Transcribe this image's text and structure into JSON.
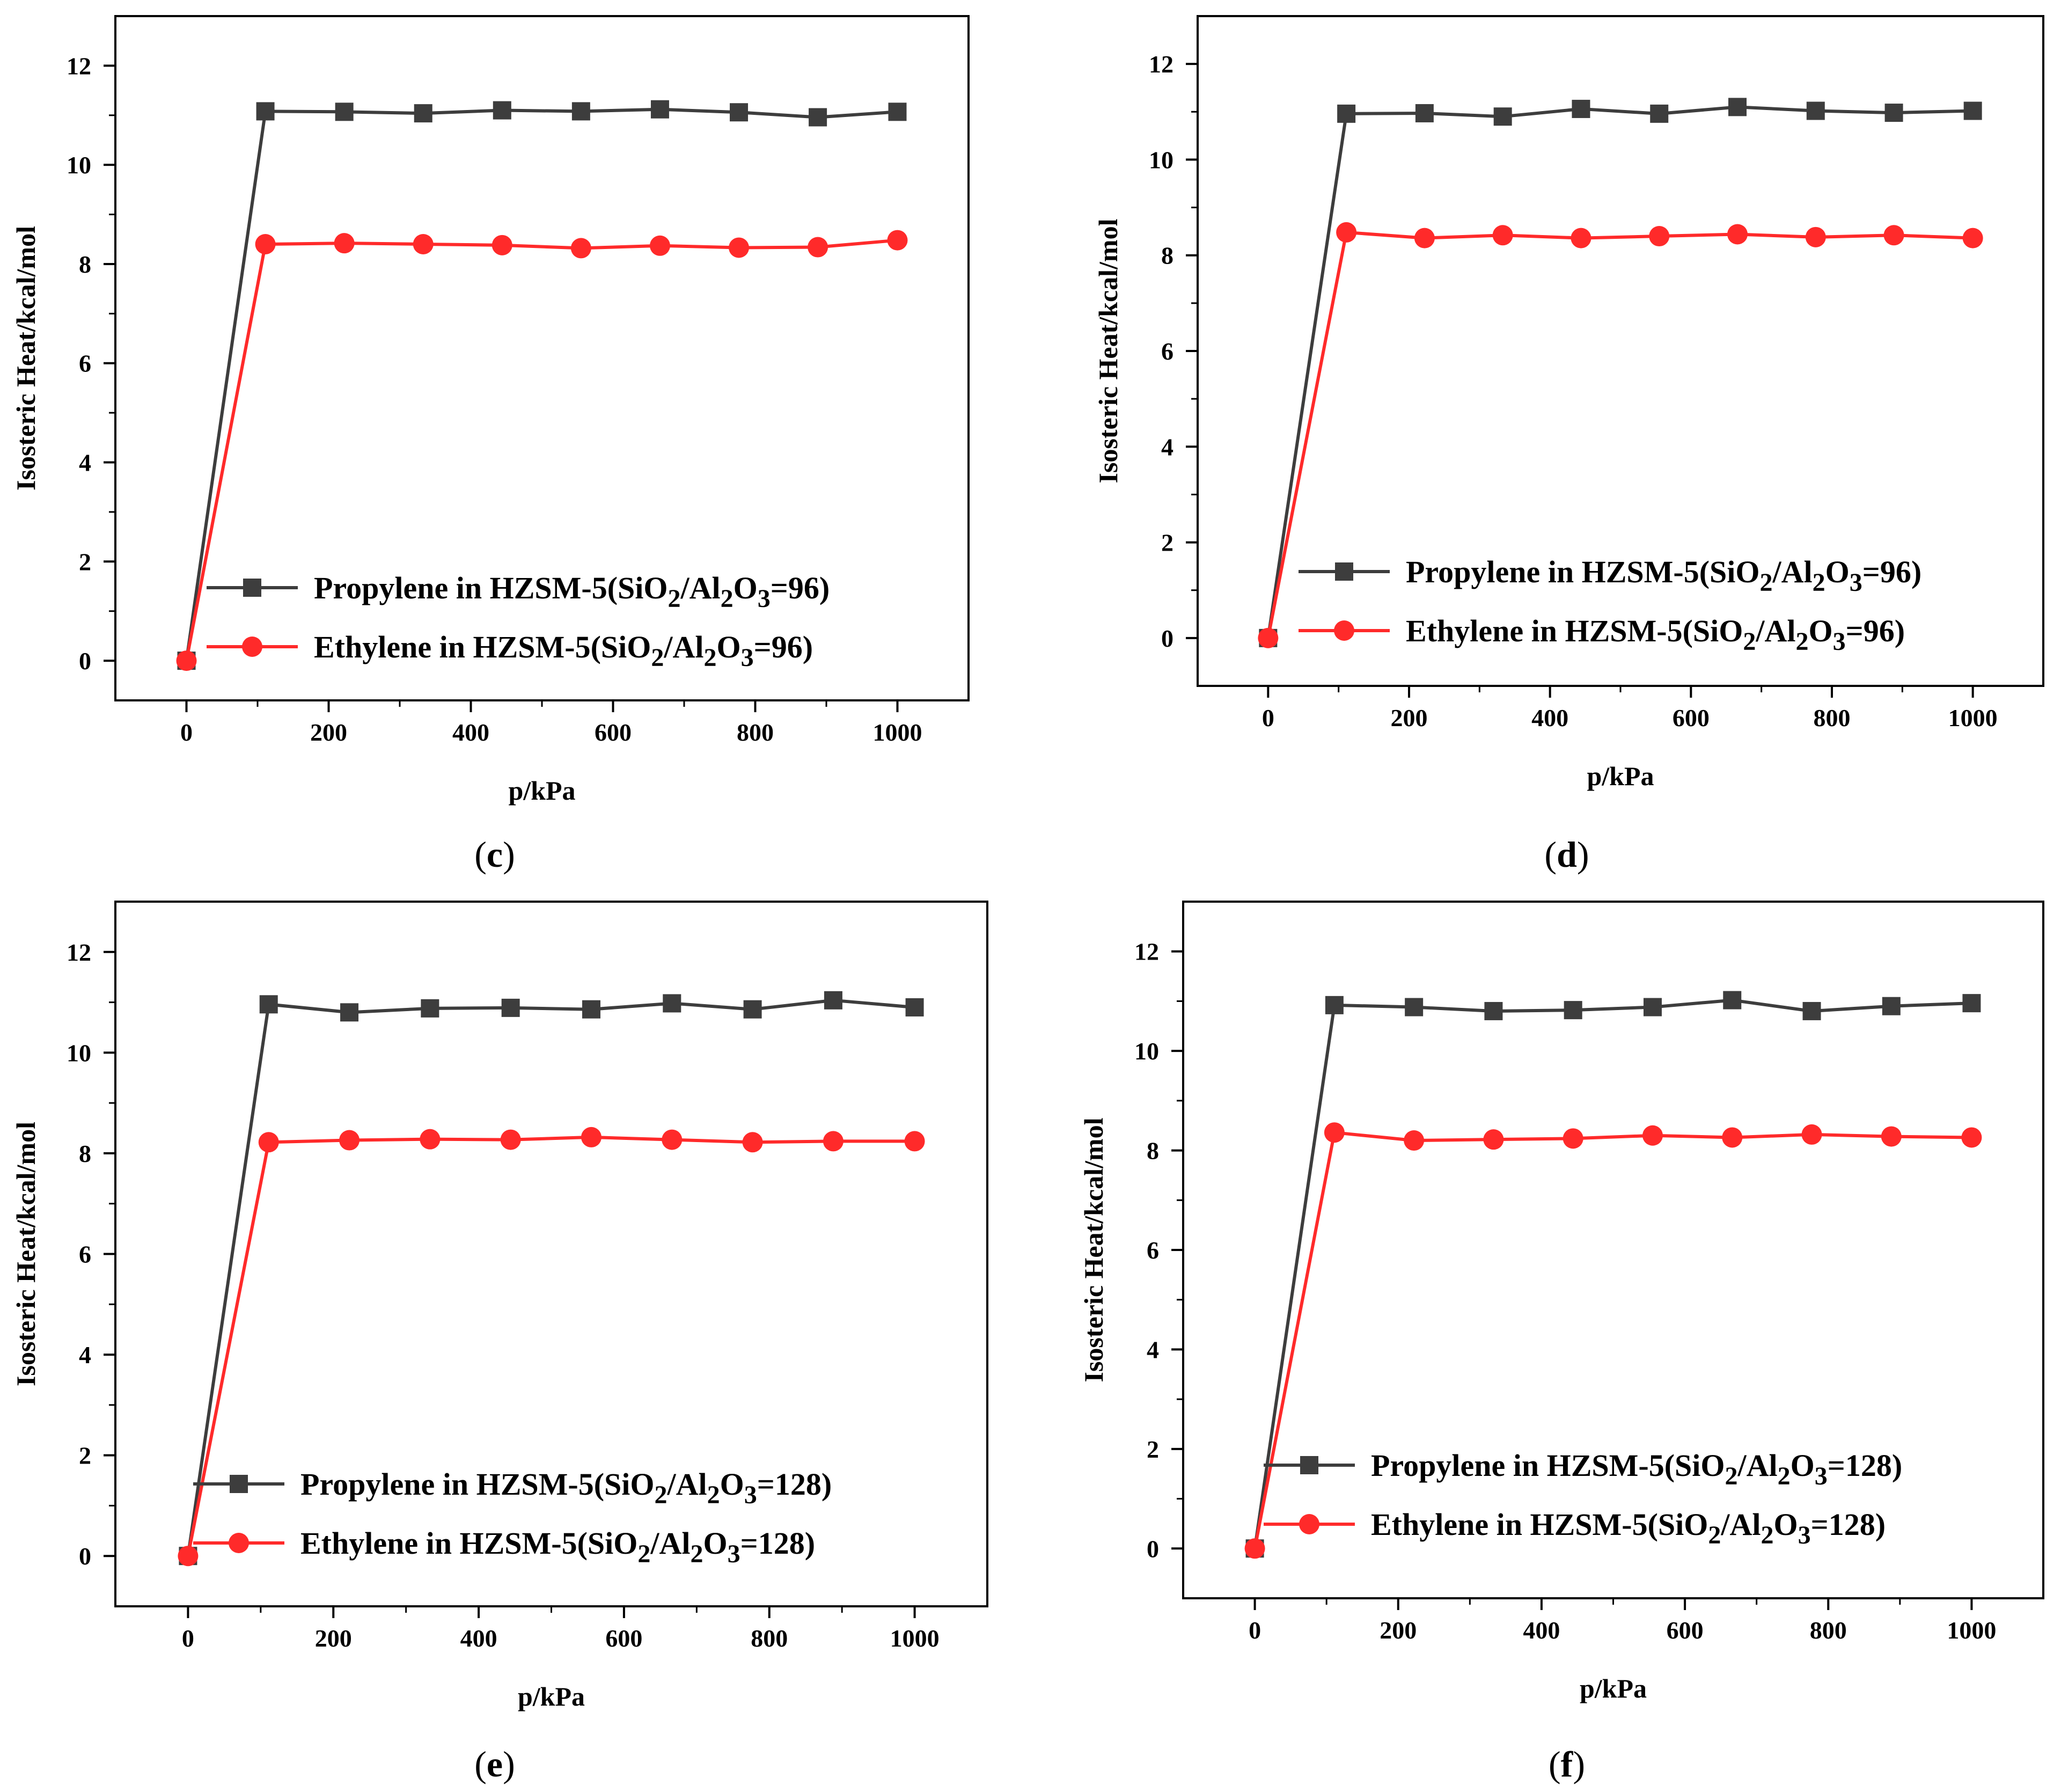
{
  "figure": {
    "colors": {
      "propylene": "#3d3d3d",
      "ethylene": "#ff2a2a",
      "axis": "#000000"
    }
  },
  "chart_data": [
    {
      "type": "line",
      "panel": "c",
      "caption": {
        "open": "(",
        "letter": "c",
        "close": ")"
      },
      "xlabel": "p/kPa",
      "ylabel": "Isosteric Heat/kcal/mol",
      "xlim": [
        -100,
        1100
      ],
      "ylim": [
        -0.8,
        13
      ],
      "xticks": [
        0,
        200,
        400,
        600,
        800,
        1000
      ],
      "yticks": [
        0,
        2,
        4,
        6,
        8,
        10,
        12
      ],
      "x": [
        0,
        111,
        222,
        333,
        444,
        555,
        666,
        777,
        888,
        1000
      ],
      "series": [
        {
          "name": "Propylene in HZSM-5(SiO2/Al2O3=96)",
          "legend": {
            "pre": "Propylene in HZSM-5(SiO",
            "s1": "2",
            "mid": "/Al",
            "s2": "2",
            "o": "O",
            "s3": "3",
            "post": "=96)"
          },
          "marker": "square",
          "values": [
            0,
            11.08,
            11.07,
            11.04,
            11.1,
            11.08,
            11.12,
            11.06,
            10.96,
            11.07
          ]
        },
        {
          "name": "Ethylene in HZSM-5(SiO2/Al2O3=96)",
          "legend": {
            "pre": "Ethylene in HZSM-5(SiO",
            "s1": "2",
            "mid": "/Al",
            "s2": "2",
            "o": "O",
            "s3": "3",
            "post": "=96)"
          },
          "marker": "circle",
          "values": [
            0,
            8.4,
            8.42,
            8.4,
            8.38,
            8.32,
            8.37,
            8.33,
            8.34,
            8.48
          ]
        }
      ]
    },
    {
      "type": "line",
      "panel": "d",
      "caption": {
        "open": "(",
        "letter": "d",
        "close": ")"
      },
      "xlabel": "p/kPa",
      "ylabel": "Isosteric Heat/kcal/mol",
      "xlim": [
        -100,
        1100
      ],
      "ylim": [
        -1,
        13
      ],
      "xticks": [
        0,
        200,
        400,
        600,
        800,
        1000
      ],
      "yticks": [
        0,
        2,
        4,
        6,
        8,
        10,
        12
      ],
      "x": [
        0,
        111,
        222,
        333,
        444,
        555,
        666,
        777,
        888,
        1000
      ],
      "series": [
        {
          "name": "Propylene in HZSM-5(SiO2/Al2O3=96)",
          "legend": {
            "pre": "Propylene in HZSM-5(SiO",
            "s1": "2",
            "mid": "/Al",
            "s2": "2",
            "o": "O",
            "s3": "3",
            "post": "=96)"
          },
          "marker": "square",
          "values": [
            0,
            10.96,
            10.97,
            10.9,
            11.06,
            10.96,
            11.1,
            11.02,
            10.98,
            11.02
          ]
        },
        {
          "name": "Ethylene in HZSM-5(SiO2/Al2O3=96)",
          "legend": {
            "pre": "Ethylene in HZSM-5(SiO",
            "s1": "2",
            "mid": "/Al",
            "s2": "2",
            "o": "O",
            "s3": "3",
            "post": "=96)"
          },
          "marker": "circle",
          "values": [
            0,
            8.48,
            8.36,
            8.42,
            8.36,
            8.4,
            8.44,
            8.38,
            8.42,
            8.36
          ]
        }
      ]
    },
    {
      "type": "line",
      "panel": "e",
      "caption": {
        "open": "(",
        "letter": "e",
        "close": ")"
      },
      "xlabel": "p/kPa",
      "ylabel": "Isosteric Heat/kcal/mol",
      "xlim": [
        -100,
        1100
      ],
      "ylim": [
        -1,
        13
      ],
      "xticks": [
        0,
        200,
        400,
        600,
        800,
        1000
      ],
      "yticks": [
        0,
        2,
        4,
        6,
        8,
        10,
        12
      ],
      "x": [
        0,
        111,
        222,
        333,
        444,
        555,
        666,
        777,
        888,
        1000
      ],
      "series": [
        {
          "name": "Propylene in HZSM-5(SiO2/Al2O3=128)",
          "legend": {
            "pre": "Propylene in HZSM-5(SiO",
            "s1": "2",
            "mid": "/Al",
            "s2": "2",
            "o": "O",
            "s3": "3",
            "post": "=128)"
          },
          "marker": "square",
          "values": [
            0,
            10.96,
            10.8,
            10.88,
            10.89,
            10.86,
            10.98,
            10.86,
            11.04,
            10.9
          ]
        },
        {
          "name": "Ethylene in HZSM-5(SiO2/Al2O3=128)",
          "legend": {
            "pre": "Ethylene in HZSM-5(SiO",
            "s1": "2",
            "mid": "/Al",
            "s2": "2",
            "o": "O",
            "s3": "3",
            "post": "=128)"
          },
          "marker": "circle",
          "values": [
            0,
            8.22,
            8.26,
            8.28,
            8.27,
            8.32,
            8.27,
            8.22,
            8.24,
            8.24
          ]
        }
      ]
    },
    {
      "type": "line",
      "panel": "f",
      "caption": {
        "open": "(",
        "letter": "f",
        "close": ")"
      },
      "xlabel": "p/kPa",
      "ylabel": "Isosteric Heat/kcal/mol",
      "xlim": [
        -100,
        1100
      ],
      "ylim": [
        -1,
        13
      ],
      "xticks": [
        0,
        200,
        400,
        600,
        800,
        1000
      ],
      "yticks": [
        0,
        2,
        4,
        6,
        8,
        10,
        12
      ],
      "x": [
        0,
        111,
        222,
        333,
        444,
        555,
        666,
        777,
        888,
        1000
      ],
      "series": [
        {
          "name": "Propylene in HZSM-5(SiO2/Al2O3=128)",
          "legend": {
            "pre": "Propylene in HZSM-5(SiO",
            "s1": "2",
            "mid": "/Al",
            "s2": "2",
            "o": "O",
            "s3": "3",
            "post": "=128)"
          },
          "marker": "square",
          "values": [
            0,
            10.92,
            10.88,
            10.8,
            10.82,
            10.88,
            11.02,
            10.8,
            10.9,
            10.96
          ]
        },
        {
          "name": "Ethylene in HZSM-5(SiO2/Al2O3=128)",
          "legend": {
            "pre": "Ethylene in HZSM-5(SiO",
            "s1": "2",
            "mid": "/Al",
            "s2": "2",
            "o": "O",
            "s3": "3",
            "post": "=128)"
          },
          "marker": "circle",
          "values": [
            0,
            8.36,
            8.2,
            8.22,
            8.24,
            8.3,
            8.26,
            8.32,
            8.28,
            8.26
          ]
        }
      ]
    }
  ]
}
